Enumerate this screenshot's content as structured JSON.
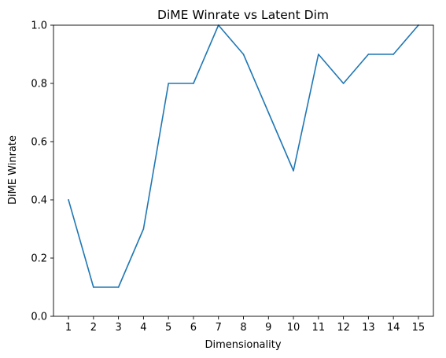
{
  "chart_data": {
    "type": "line",
    "title": "DiME Winrate vs Latent Dim",
    "xlabel": "Dimensionality",
    "ylabel": "DiME Winrate",
    "x": [
      1,
      2,
      3,
      4,
      5,
      6,
      7,
      8,
      9,
      10,
      11,
      12,
      13,
      14,
      15
    ],
    "series": [
      {
        "values": [
          0.4,
          0.1,
          0.1,
          0.3,
          0.8,
          0.8,
          1.0,
          0.9,
          0.7,
          0.5,
          0.9,
          0.8,
          0.9,
          0.9,
          1.0
        ],
        "color": "#1f77b4"
      }
    ],
    "xlim": [
      0.4,
      15.6
    ],
    "ylim": [
      0.0,
      1.0
    ],
    "xticks": [
      "1",
      "2",
      "3",
      "4",
      "5",
      "6",
      "7",
      "8",
      "9",
      "10",
      "11",
      "12",
      "13",
      "14",
      "15"
    ],
    "yticks": [
      "0.0",
      "0.2",
      "0.4",
      "0.6",
      "0.8",
      "1.0"
    ],
    "grid": false,
    "legend": "none"
  }
}
